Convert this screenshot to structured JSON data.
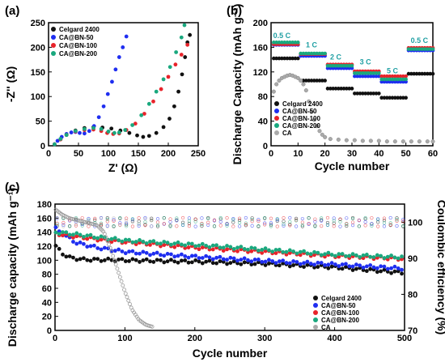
{
  "panels": {
    "a": {
      "label": "(a)"
    },
    "b": {
      "label": "(b)"
    },
    "c": {
      "label": "(c)"
    }
  },
  "colors": {
    "Celgard 2400": "#111111",
    "CA@BN-50": "#1f2ef0",
    "CA@BN-100": "#e8232a",
    "CA@BN-200": "#1aa87e",
    "CA": "#aaaaaa",
    "annotation": "#1f9fa3"
  },
  "chart_data": [
    {
      "id": "a",
      "type": "scatter",
      "title": "",
      "xlabel": "Z' (Ω)",
      "ylabel": "-Z'' (Ω)",
      "xlim": [
        0,
        250
      ],
      "ylim": [
        0,
        250
      ],
      "xticks": [
        "0",
        "50",
        "100",
        "150",
        "200",
        "250"
      ],
      "yticks": [
        "0",
        "50",
        "100",
        "150",
        "200",
        "250"
      ],
      "legend": "top-left",
      "series": [
        {
          "name": "Celgard 2400",
          "points": [
            [
              10,
              3
            ],
            [
              20,
              13
            ],
            [
              30,
              22
            ],
            [
              45,
              31
            ],
            [
              60,
              36
            ],
            [
              75,
              38
            ],
            [
              90,
              37
            ],
            [
              105,
              35
            ],
            [
              120,
              31
            ],
            [
              135,
              26
            ],
            [
              148,
              21
            ],
            [
              158,
              18
            ],
            [
              168,
              20
            ],
            [
              180,
              26
            ],
            [
              192,
              38
            ],
            [
              202,
              55
            ],
            [
              210,
              80
            ],
            [
              217,
              110
            ],
            [
              223,
              145
            ],
            [
              228,
              180
            ],
            [
              232,
              210
            ],
            [
              236,
              225
            ]
          ]
        },
        {
          "name": "CA@BN-50",
          "points": [
            [
              10,
              3
            ],
            [
              15,
              10
            ],
            [
              22,
              18
            ],
            [
              30,
              24
            ],
            [
              38,
              27
            ],
            [
              45,
              28
            ],
            [
              52,
              26
            ],
            [
              60,
              25
            ],
            [
              68,
              30
            ],
            [
              76,
              40
            ],
            [
              84,
              58
            ],
            [
              92,
              80
            ],
            [
              99,
              105
            ],
            [
              106,
              130
            ],
            [
              112,
              155
            ],
            [
              118,
              180
            ],
            [
              124,
              200
            ],
            [
              130,
              222
            ]
          ]
        },
        {
          "name": "CA@BN-100",
          "points": [
            [
              10,
              3
            ],
            [
              20,
              13
            ],
            [
              30,
              22
            ],
            [
              45,
              29
            ],
            [
              60,
              32
            ],
            [
              75,
              33
            ],
            [
              88,
              30
            ],
            [
              98,
              26
            ],
            [
              108,
              24
            ],
            [
              118,
              25
            ],
            [
              130,
              32
            ],
            [
              145,
              45
            ],
            [
              160,
              65
            ],
            [
              175,
              90
            ],
            [
              188,
              115
            ],
            [
              200,
              140
            ],
            [
              212,
              165
            ],
            [
              222,
              185
            ],
            [
              232,
              205
            ]
          ]
        },
        {
          "name": "CA@BN-200",
          "points": [
            [
              10,
              3
            ],
            [
              20,
              14
            ],
            [
              30,
              22
            ],
            [
              45,
              30
            ],
            [
              60,
              34
            ],
            [
              75,
              36
            ],
            [
              88,
              34
            ],
            [
              100,
              29
            ],
            [
              110,
              26
            ],
            [
              118,
              27
            ],
            [
              128,
              32
            ],
            [
              140,
              42
            ],
            [
              155,
              62
            ],
            [
              168,
              85
            ],
            [
              180,
              110
            ],
            [
              192,
              135
            ],
            [
              203,
              160
            ],
            [
              213,
              190
            ],
            [
              222,
              220
            ],
            [
              227,
              245
            ]
          ]
        }
      ]
    },
    {
      "id": "b",
      "type": "scatter",
      "title": "",
      "xlabel": "Cycle number",
      "ylabel": "Discharge Capacity (mAh g⁻¹)",
      "xlim": [
        0,
        60
      ],
      "ylim": [
        0,
        200
      ],
      "xticks": [
        "0",
        "10",
        "20",
        "30",
        "40",
        "50",
        "60"
      ],
      "yticks": [
        "0",
        "40",
        "80",
        "120",
        "160",
        "200"
      ],
      "legend": "bottom-left",
      "annotations": [
        {
          "text": "0.5 C",
          "x": 4,
          "y": 175
        },
        {
          "text": "1 C",
          "x": 15,
          "y": 160
        },
        {
          "text": "2 C",
          "x": 24,
          "y": 140
        },
        {
          "text": "3 C",
          "x": 35,
          "y": 132
        },
        {
          "text": "5 C",
          "x": 45,
          "y": 118
        },
        {
          "text": "0.5 C",
          "x": 55,
          "y": 167
        }
      ],
      "series": [
        {
          "name": "Celgard 2400",
          "levels": [
            [
              1,
              10,
              142
            ],
            [
              11,
              20,
              106
            ],
            [
              21,
              30,
              93
            ],
            [
              31,
              40,
              85
            ],
            [
              41,
              50,
              78
            ],
            [
              51,
              60,
              117
            ]
          ]
        },
        {
          "name": "CA@BN-50",
          "levels": [
            [
              1,
              10,
              164
            ],
            [
              11,
              20,
              146
            ],
            [
              21,
              30,
              126
            ],
            [
              31,
              40,
              113
            ],
            [
              41,
              50,
              104
            ],
            [
              51,
              60,
              155
            ]
          ]
        },
        {
          "name": "CA@BN-100",
          "levels": [
            [
              1,
              10,
              165
            ],
            [
              11,
              20,
              149
            ],
            [
              21,
              30,
              132
            ],
            [
              31,
              40,
              121
            ],
            [
              41,
              50,
              113
            ],
            [
              51,
              60,
              159
            ]
          ]
        },
        {
          "name": "CA@BN-200",
          "levels": [
            [
              1,
              10,
              168
            ],
            [
              11,
              20,
              150
            ],
            [
              21,
              30,
              130
            ],
            [
              31,
              40,
              118
            ],
            [
              41,
              50,
              108
            ],
            [
              51,
              60,
              157
            ]
          ]
        },
        {
          "name": "CA",
          "points": [
            [
              1,
              88
            ],
            [
              2,
              100
            ],
            [
              3,
              106
            ],
            [
              4,
              110
            ],
            [
              5,
              112
            ],
            [
              6,
              114
            ],
            [
              7,
              115
            ],
            [
              8,
              114
            ],
            [
              9,
              112
            ],
            [
              10,
              110
            ],
            [
              11,
              106
            ],
            [
              12,
              100
            ],
            [
              13,
              90
            ],
            [
              14,
              72
            ],
            [
              15,
              55
            ],
            [
              16,
              42
            ],
            [
              17,
              32
            ],
            [
              18,
              24
            ],
            [
              19,
              18
            ],
            [
              20,
              14
            ],
            [
              22,
              11
            ],
            [
              25,
              10
            ],
            [
              28,
              9
            ],
            [
              31,
              9
            ],
            [
              34,
              8
            ],
            [
              37,
              8
            ],
            [
              40,
              8
            ],
            [
              43,
              7
            ],
            [
              46,
              7
            ],
            [
              49,
              7
            ],
            [
              52,
              7
            ],
            [
              55,
              7
            ],
            [
              58,
              7
            ],
            [
              60,
              7
            ]
          ]
        }
      ]
    },
    {
      "id": "c",
      "type": "scatter",
      "title": "",
      "xlabel": "Cycle number",
      "ylabel": "Discharge capacity (mAh g⁻¹)",
      "y2label": "Coulombic efficiency (%)",
      "xlim": [
        0,
        500
      ],
      "ylim": [
        0,
        180
      ],
      "y2lim": [
        70,
        105
      ],
      "xticks": [
        "0",
        "100",
        "200",
        "300",
        "400",
        "500"
      ],
      "yticks": [
        "0",
        "20",
        "40",
        "60",
        "80",
        "100",
        "120",
        "140",
        "160",
        "180"
      ],
      "y2ticks": [
        "70",
        "80",
        "90",
        "100"
      ],
      "legend": "bottom-right",
      "series": [
        {
          "name": "Celgard 2400",
          "capacity": [
            [
              1,
              120
            ],
            [
              10,
              110
            ],
            [
              20,
              104
            ],
            [
              40,
              101
            ],
            [
              100,
              100
            ],
            [
              200,
              98
            ],
            [
              300,
              95
            ],
            [
              400,
              90
            ],
            [
              450,
              86
            ],
            [
              500,
              82
            ]
          ],
          "efficiency": 100
        },
        {
          "name": "CA@BN-50",
          "capacity": [
            [
              1,
              145
            ],
            [
              10,
              138
            ],
            [
              30,
              125
            ],
            [
              60,
              118
            ],
            [
              100,
              112
            ],
            [
              200,
              105
            ],
            [
              300,
              99
            ],
            [
              400,
              94
            ],
            [
              450,
              91
            ],
            [
              500,
              88
            ]
          ],
          "efficiency": 100
        },
        {
          "name": "CA@BN-100",
          "capacity": [
            [
              1,
              138
            ],
            [
              20,
              135
            ],
            [
              60,
              130
            ],
            [
              100,
              126
            ],
            [
              200,
              118
            ],
            [
              300,
              112
            ],
            [
              400,
              106
            ],
            [
              450,
              104
            ],
            [
              500,
              102
            ]
          ],
          "efficiency": 100
        },
        {
          "name": "CA@BN-200",
          "capacity": [
            [
              1,
              140
            ],
            [
              20,
              138
            ],
            [
              60,
              133
            ],
            [
              100,
              128
            ],
            [
              200,
              122
            ],
            [
              300,
              115
            ],
            [
              400,
              108
            ],
            [
              450,
              106
            ],
            [
              500,
              104
            ]
          ],
          "efficiency": 100
        },
        {
          "name": "CA",
          "capacity": [
            [
              1,
              172
            ],
            [
              10,
              165
            ],
            [
              20,
              160
            ],
            [
              40,
              155
            ],
            [
              60,
              150
            ],
            [
              70,
              140
            ],
            [
              80,
              115
            ],
            [
              90,
              85
            ],
            [
              100,
              55
            ],
            [
              110,
              30
            ],
            [
              120,
              15
            ],
            [
              130,
              8
            ],
            [
              140,
              5
            ]
          ],
          "efficiency": 100
        }
      ]
    }
  ]
}
